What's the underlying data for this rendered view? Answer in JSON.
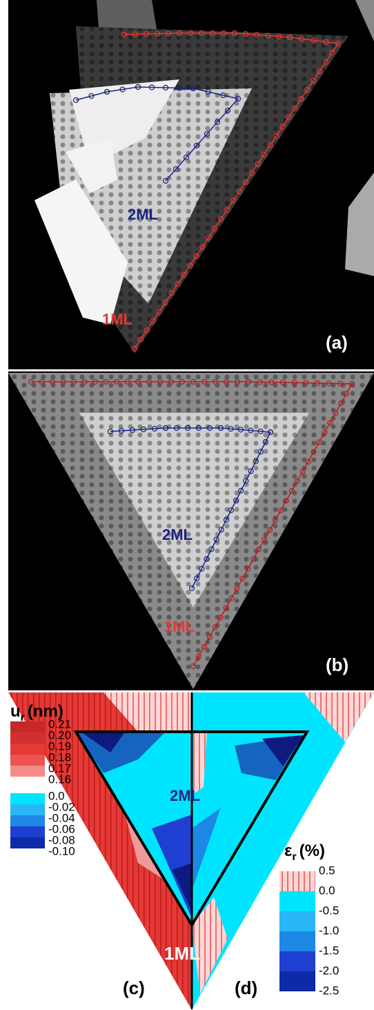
{
  "panels": {
    "a": {
      "label": "(a)",
      "label_2ml": "2ML",
      "label_1ml": "1ML"
    },
    "b": {
      "label": "(b)",
      "label_2ml": "2ML",
      "label_1ml": "1ML"
    },
    "c": {
      "label": "(c)",
      "legend_title": {
        "symbol": "u",
        "subscript": "r",
        "unit": "(nm)"
      },
      "legend_labels": [
        "0.21",
        "0.20",
        "0.19",
        "0.18",
        "0.17",
        "0.16",
        "0.0",
        "-0.02",
        "-0.04",
        "-0.06",
        "-0.08",
        "-0.10"
      ]
    },
    "d": {
      "label": "(d)",
      "legend_title": {
        "symbol": "ε",
        "subscript": "r",
        "unit": "(%)"
      },
      "legend_labels": [
        "0.5",
        "0.0",
        "-0.5",
        "-1.0",
        "-1.5",
        "-2.0",
        "-2.5"
      ]
    },
    "cd_labels": {
      "label_2ml": "2ML",
      "label_1ml": "1ML"
    }
  }
}
